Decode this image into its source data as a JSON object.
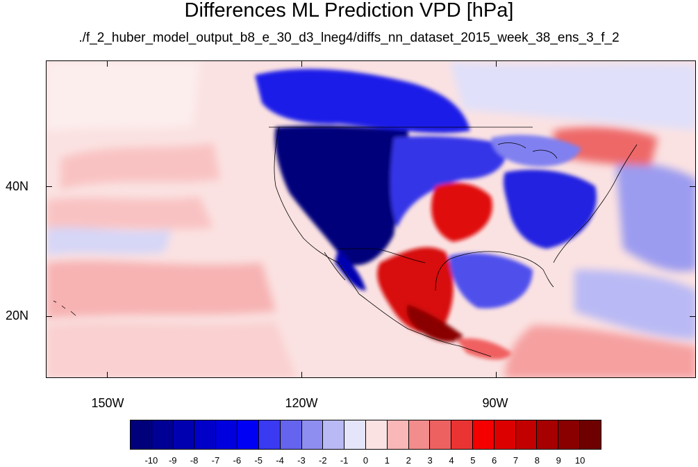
{
  "title": "Differences ML Prediction VPD [hPa]",
  "subtitle": "./f_2_huber_model_output_b8_e_30_d3_lneg4/diffs_nn_dataset_2015_week_38_ens_3_f_2",
  "lat_labels": [
    "40N",
    "20N"
  ],
  "lon_labels": [
    "150W",
    "120W",
    "90W"
  ],
  "map_extent": {
    "lon_min": -160,
    "lon_max": -60,
    "lat_min": 10,
    "lat_max": 59
  },
  "colorbar": {
    "labels": [
      "-10",
      "-9",
      "-8",
      "-7",
      "-6",
      "-5",
      "-4",
      "-3",
      "-2",
      "-1",
      "0",
      "1",
      "2",
      "3",
      "4",
      "5",
      "6",
      "7",
      "8",
      "9",
      "10"
    ],
    "colors": [
      "#00007a",
      "#000095",
      "#0000b0",
      "#0000c8",
      "#0000df",
      "#0000f5",
      "#3a3af2",
      "#6464ee",
      "#8e8ef0",
      "#b9b9f5",
      "#e4e4fb",
      "#fbe2e2",
      "#f9b7b7",
      "#f38c8c",
      "#ee6161",
      "#ea3434",
      "#f40000",
      "#dd0000",
      "#c20000",
      "#a60000",
      "#8a0000",
      "#6e0000"
    ]
  },
  "colors": {
    "ocean_background": "#fbe2e2",
    "strong_negative": "#00007a",
    "strong_positive": "#bb0000"
  }
}
